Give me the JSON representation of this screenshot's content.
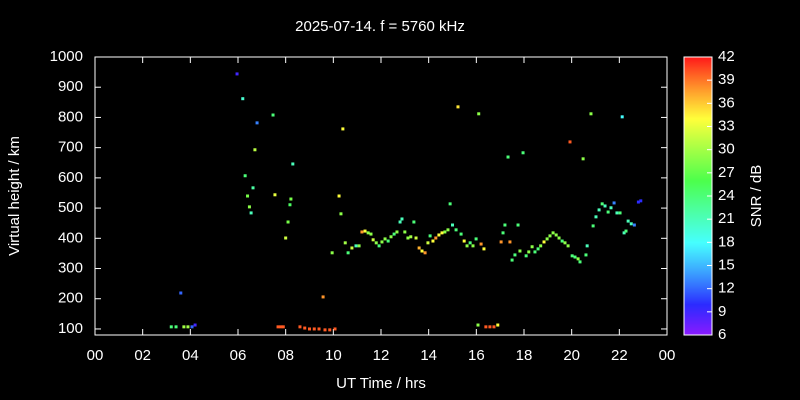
{
  "chart_data": {
    "type": "scatter",
    "title": "2025-07-14. f = 5760 kHz",
    "xlabel": "UT Time / hrs",
    "ylabel": "Virtual height / km",
    "xlim": [
      0,
      24
    ],
    "xticks": [
      {
        "value": 0,
        "label": "00"
      },
      {
        "value": 2,
        "label": "02"
      },
      {
        "value": 4,
        "label": "04"
      },
      {
        "value": 6,
        "label": "06"
      },
      {
        "value": 8,
        "label": "08"
      },
      10,
      12,
      14,
      16,
      18,
      20,
      22,
      {
        "value": 24,
        "label": "00"
      }
    ],
    "ylim": [
      80,
      1000
    ],
    "yticks": [
      100,
      200,
      300,
      400,
      500,
      600,
      700,
      800,
      900,
      1000
    ],
    "colorbar": {
      "label": "SNR / dB",
      "lim": [
        6,
        42
      ],
      "ticks": [
        6,
        9,
        12,
        15,
        18,
        21,
        24,
        27,
        30,
        33,
        36,
        39,
        42
      ]
    },
    "series": [
      {
        "x": [
          3.2,
          3.4,
          3.6,
          3.73,
          3.9,
          4.07,
          4.2,
          5.96,
          6.2,
          6.3,
          6.4,
          6.48,
          6.55,
          6.63,
          6.71,
          6.8,
          7.47,
          7.55,
          7.68,
          7.8,
          7.9,
          8.0,
          8.1,
          8.18,
          8.22,
          8.3,
          8.6,
          8.8,
          9.0,
          9.2,
          9.4,
          9.65,
          9.85,
          10.07,
          9.57,
          9.95,
          10.24,
          10.32,
          10.4,
          10.5,
          10.62,
          10.78,
          10.95,
          11.08,
          11.2,
          11.33,
          11.46,
          11.58,
          11.67,
          11.8,
          11.92,
          12.04,
          12.17,
          12.3,
          12.42,
          12.55,
          12.67,
          12.8,
          12.88,
          13.0,
          13.13,
          13.25,
          13.38,
          13.47,
          13.6,
          13.72,
          13.85,
          13.97,
          14.06,
          14.18,
          14.3,
          14.43,
          14.56,
          14.68,
          14.81,
          14.9,
          15.0,
          15.15,
          15.23,
          15.36,
          15.49,
          15.61,
          15.74,
          15.86,
          15.99,
          16.07,
          16.1,
          16.2,
          16.32,
          16.4,
          16.57,
          16.74,
          16.9,
          17.04,
          17.12,
          17.2,
          17.33,
          17.41,
          17.5,
          17.62,
          17.75,
          17.83,
          17.96,
          18.09,
          18.2,
          18.34,
          18.46,
          18.59,
          18.7,
          18.84,
          18.97,
          19.09,
          19.22,
          19.35,
          19.47,
          19.6,
          19.72,
          19.85,
          19.93,
          20.02,
          20.14,
          20.27,
          20.35,
          20.48,
          20.6,
          20.65,
          20.81,
          20.9,
          21.02,
          21.15,
          21.28,
          21.4,
          21.53,
          21.65,
          21.78,
          21.9,
          22.03,
          22.12,
          22.2,
          22.28,
          22.37,
          22.5,
          22.63,
          22.8,
          22.9
        ],
        "y": [
          107,
          107,
          219,
          107,
          107,
          107,
          113,
          944,
          862,
          607,
          540,
          504,
          484,
          567,
          693,
          782,
          808,
          544,
          107,
          107,
          107,
          401,
          454,
          511,
          530,
          646,
          107,
          103,
          100,
          100,
          100,
          97,
          97,
          100,
          206,
          352,
          540,
          481,
          762,
          385,
          352,
          368,
          375,
          375,
          421,
          424,
          418,
          414,
          395,
          385,
          375,
          388,
          398,
          391,
          405,
          414,
          421,
          454,
          464,
          421,
          401,
          405,
          454,
          401,
          368,
          358,
          352,
          385,
          408,
          391,
          401,
          411,
          418,
          421,
          428,
          514,
          444,
          428,
          835,
          414,
          391,
          375,
          385,
          375,
          398,
          113,
          812,
          381,
          365,
          107,
          107,
          107,
          113,
          388,
          418,
          444,
          669,
          388,
          328,
          345,
          444,
          358,
          683,
          342,
          355,
          372,
          355,
          365,
          375,
          388,
          398,
          408,
          418,
          411,
          401,
          391,
          385,
          375,
          719,
          342,
          338,
          332,
          322,
          663,
          345,
          375,
          812,
          441,
          471,
          494,
          514,
          507,
          487,
          501,
          517,
          484,
          484,
          802,
          418,
          424,
          457,
          448,
          444,
          520,
          524
        ],
        "snr": [
          24,
          24,
          12,
          30,
          30,
          12,
          9,
          9,
          20,
          24,
          28,
          29,
          21,
          22,
          31,
          13,
          24,
          33,
          40,
          40,
          40,
          32,
          28,
          25,
          28,
          21,
          40,
          40,
          40,
          40,
          40,
          40,
          40,
          40,
          38,
          29,
          34,
          29,
          34,
          30,
          24,
          32,
          21,
          29,
          38,
          34,
          29,
          29,
          32,
          29,
          24,
          29,
          29,
          24,
          29,
          24,
          29,
          21,
          21,
          29,
          29,
          30,
          24,
          32,
          37,
          34,
          38,
          32,
          24,
          34,
          38,
          34,
          34,
          29,
          29,
          24,
          21,
          24,
          35,
          24,
          34,
          29,
          24,
          29,
          24,
          29,
          29,
          38,
          34,
          40,
          40,
          40,
          34,
          38,
          24,
          24,
          24,
          38,
          24,
          24,
          24,
          29,
          24,
          24,
          29,
          29,
          24,
          24,
          29,
          34,
          29,
          29,
          29,
          29,
          29,
          24,
          29,
          29,
          40,
          24,
          24,
          29,
          24,
          29,
          24,
          21,
          29,
          24,
          21,
          21,
          24,
          21,
          24,
          21,
          13,
          21,
          24,
          18,
          21,
          24,
          21,
          21,
          13,
          10,
          10
        ]
      }
    ]
  }
}
